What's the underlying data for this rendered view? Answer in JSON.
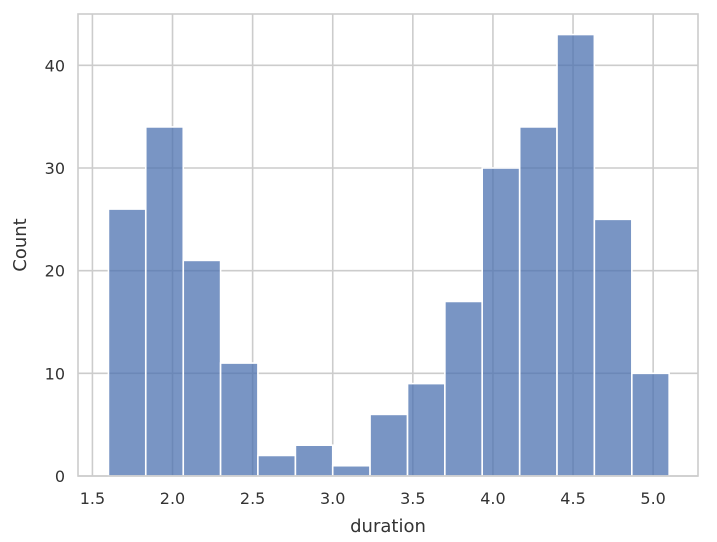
{
  "chart_data": {
    "type": "bar",
    "subtype": "histogram",
    "title": "",
    "xlabel": "duration",
    "ylabel": "Count",
    "xlim": [
      1.41,
      5.28
    ],
    "ylim": [
      0,
      45
    ],
    "xticks": [
      1.5,
      2.0,
      2.5,
      3.0,
      3.5,
      4.0,
      4.5,
      5.0
    ],
    "xtick_labels": [
      "1.5",
      "2.0",
      "2.5",
      "3.0",
      "3.5",
      "4.0",
      "4.5",
      "5.0"
    ],
    "yticks": [
      0,
      10,
      20,
      30,
      40
    ],
    "ytick_labels": [
      "0",
      "10",
      "20",
      "30",
      "40"
    ],
    "bin_edges": [
      1.6,
      1.833,
      2.067,
      2.3,
      2.533,
      2.767,
      3.0,
      3.233,
      3.467,
      3.7,
      3.933,
      4.167,
      4.4,
      4.633,
      4.867,
      5.1
    ],
    "values": [
      26,
      34,
      21,
      11,
      2,
      3,
      1,
      6,
      9,
      17,
      30,
      34,
      43,
      25,
      10
    ],
    "grid": true,
    "colors": {
      "bar_fill": "#4c72b0",
      "bar_edge": "#ffffff",
      "grid": "#cccccc",
      "spine": "#cccccc"
    }
  }
}
